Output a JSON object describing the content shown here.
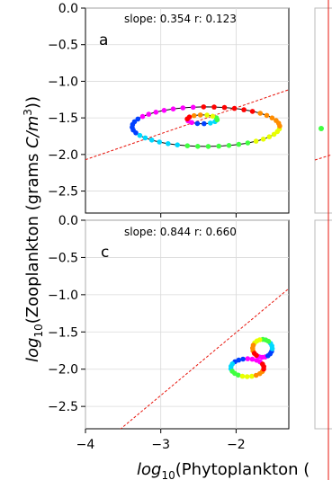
{
  "figure": {
    "ylabel_prefix": "log",
    "ylabel_sub": "10",
    "ylabel_body": "(Zooplankton (grams ",
    "ylabel_unit": "C/m",
    "ylabel_sup": "3",
    "ylabel_end": "))",
    "xlabel_prefix": "log",
    "xlabel_sub": "10",
    "xlabel_body": "(Phytoplankton ("
  },
  "chart_data": [
    {
      "type": "scatter",
      "panel_label": "a",
      "annotation": "slope: 0.354  r: 0.123",
      "xlim": [
        -4,
        -1.3
      ],
      "ylim": [
        -2.8,
        0.0
      ],
      "yticks": [
        0.0,
        -0.5,
        -1.0,
        -1.5,
        -2.0,
        -2.5
      ],
      "ytick_labels": [
        "0.0",
        "−0.5",
        "−1.0",
        "−1.5",
        "−2.0",
        "−2.5"
      ],
      "xticks": [
        -3,
        -2
      ],
      "grid": true,
      "fit_line": {
        "slope": 0.354,
        "intercept": -0.655,
        "color": "#e8150c"
      },
      "loop": {
        "cx": -2.4,
        "cy": -1.62,
        "rx": 0.98,
        "ry": 0.27,
        "phase_deg": 100
      },
      "inner_loop": {
        "cx": -2.45,
        "cy": -1.52,
        "rx": 0.2,
        "ry": 0.06
      },
      "series_colors": [
        "#ff00ff",
        "#0040ff",
        "#00d8ff",
        "#40ff40",
        "#e8ff00",
        "#ff8c00",
        "#ff0000"
      ]
    },
    {
      "type": "scatter",
      "panel_label": "c",
      "annotation": "slope: 0.844  r: 0.660",
      "xlim": [
        -4,
        -1.3
      ],
      "ylim": [
        -2.8,
        0.0
      ],
      "yticks": [
        0.0,
        -0.5,
        -1.0,
        -1.5,
        -2.0,
        -2.5
      ],
      "ytick_labels": [
        "0.0",
        "−0.5",
        "−1.0",
        "−1.5",
        "−2.0",
        "−2.5"
      ],
      "xticks": [
        -4,
        -3,
        -2
      ],
      "xtick_labels": [
        "−4",
        "−3",
        "−2"
      ],
      "grid": true,
      "fit_line": {
        "slope": 0.844,
        "intercept": 0.18,
        "color": "#e8150c"
      },
      "loop_upper": {
        "cx": -1.65,
        "cy": -1.72,
        "rx": 0.13,
        "ry": 0.12
      },
      "loop_lower": {
        "cx": -1.85,
        "cy": -1.98,
        "rx": 0.22,
        "ry": 0.12
      },
      "series_colors": [
        "#ff00ff",
        "#0040ff",
        "#00d8ff",
        "#40ff40",
        "#e8ff00",
        "#ff8c00",
        "#ff0000"
      ]
    }
  ]
}
